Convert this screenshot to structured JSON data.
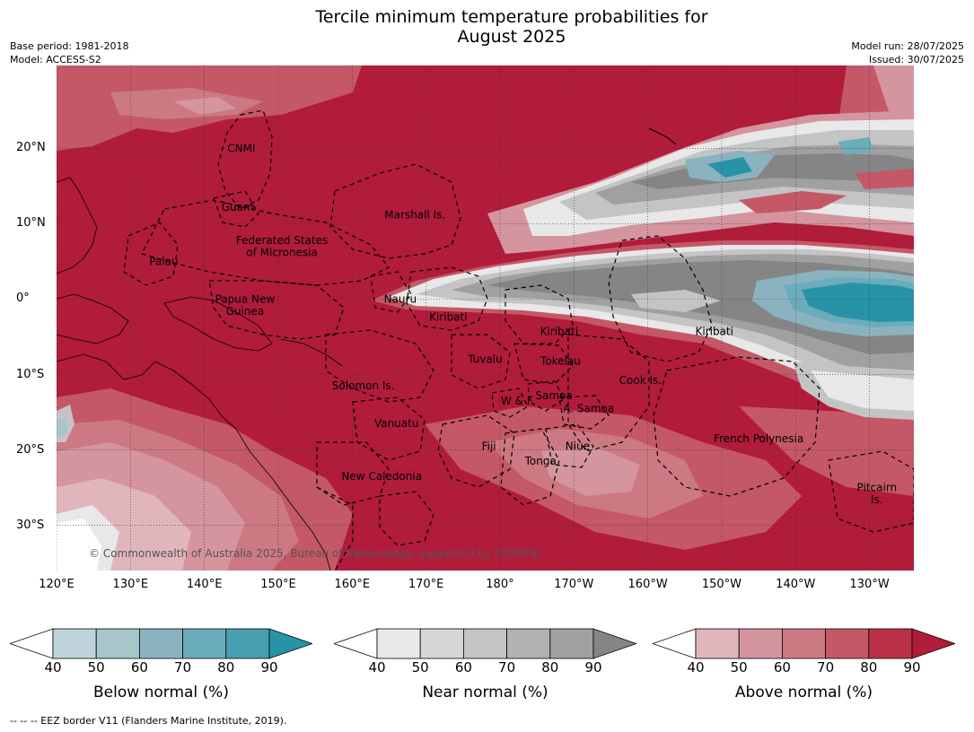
{
  "title": {
    "line1": "Tercile minimum temperature probabilities for",
    "line2": "August 2025"
  },
  "meta": {
    "base_period": "Base period: 1981-2018",
    "model": "Model: ACCESS-S2",
    "model_run": "Model run: 28/07/2025",
    "issued": "Issued: 30/07/2025"
  },
  "map": {
    "lon_range": [
      120,
      236
    ],
    "lat_range": [
      -36,
      31
    ],
    "lat_ticks": [
      {
        "value": 20,
        "label": "20°N"
      },
      {
        "value": 10,
        "label": "10°N"
      },
      {
        "value": 0,
        "label": "0°"
      },
      {
        "value": -10,
        "label": "10°S"
      },
      {
        "value": -20,
        "label": "20°S"
      },
      {
        "value": -30,
        "label": "30°S"
      }
    ],
    "lon_ticks": [
      {
        "value": 120,
        "label": "120°E"
      },
      {
        "value": 130,
        "label": "130°E"
      },
      {
        "value": 140,
        "label": "140°E"
      },
      {
        "value": 150,
        "label": "150°E"
      },
      {
        "value": 160,
        "label": "160°E"
      },
      {
        "value": 170,
        "label": "170°E"
      },
      {
        "value": 180,
        "label": "180°"
      },
      {
        "value": 190,
        "label": "170°W"
      },
      {
        "value": 200,
        "label": "160°W"
      },
      {
        "value": 210,
        "label": "150°W"
      },
      {
        "value": 220,
        "label": "140°W"
      },
      {
        "value": 230,
        "label": "130°W"
      }
    ],
    "countries": [
      {
        "name": "CNMI",
        "lon": 145.0,
        "lat": 20.0
      },
      {
        "name": "Guam",
        "lon": 144.5,
        "lat": 12.2
      },
      {
        "name": "Marshall Is.",
        "lon": 168.5,
        "lat": 11.2
      },
      {
        "name": "Federated States",
        "lon": 150.5,
        "lat": 7.8
      },
      {
        "name": "of Micronesia",
        "lon": 150.5,
        "lat": 6.2
      },
      {
        "name": "Palau",
        "lon": 134.5,
        "lat": 5.0
      },
      {
        "name": "Papua New",
        "lon": 145.5,
        "lat": 0.0
      },
      {
        "name": "Guinea",
        "lon": 145.5,
        "lat": -1.6
      },
      {
        "name": "Nauru",
        "lon": 166.5,
        "lat": 0.0
      },
      {
        "name": "Kiribati",
        "lon": 173.0,
        "lat": -2.4
      },
      {
        "name": "Kiribati",
        "lon": 188.0,
        "lat": -4.3
      },
      {
        "name": "Kiribati",
        "lon": 209.0,
        "lat": -4.3
      },
      {
        "name": "Tuvalu",
        "lon": 178.0,
        "lat": -8.0
      },
      {
        "name": "Tokelau",
        "lon": 188.2,
        "lat": -8.2
      },
      {
        "name": "Cook Is.",
        "lon": 199.0,
        "lat": -10.8
      },
      {
        "name": "Solomon Is.",
        "lon": 161.5,
        "lat": -11.5
      },
      {
        "name": "W & F",
        "lon": 182.3,
        "lat": -13.5
      },
      {
        "name": "Samoa",
        "lon": 187.3,
        "lat": -12.8
      },
      {
        "name": "A. Samoa",
        "lon": 192.0,
        "lat": -14.5
      },
      {
        "name": "Vanuatu",
        "lon": 166.0,
        "lat": -16.5
      },
      {
        "name": "Fiji",
        "lon": 178.5,
        "lat": -19.5
      },
      {
        "name": "Niue",
        "lon": 190.5,
        "lat": -19.5
      },
      {
        "name": "French Polynesia",
        "lon": 215.0,
        "lat": -18.5
      },
      {
        "name": "Tonga",
        "lon": 185.5,
        "lat": -21.5
      },
      {
        "name": "New Caledonia",
        "lon": 164.0,
        "lat": -23.5
      },
      {
        "name": "Pitcairn",
        "lon": 231.0,
        "lat": -25.0
      },
      {
        "name": "Is.",
        "lon": 231.0,
        "lat": -26.6
      }
    ],
    "copyright": "© Commonwealth of Australia 2025, Bureau of Meteorology, supported by COSPPac"
  },
  "colorbars": [
    {
      "title": "Below normal (%)",
      "ticks": [
        "40",
        "50",
        "60",
        "70",
        "80",
        "90"
      ],
      "colors": [
        "#bfd4da",
        "#a6c6ca",
        "#8ab3bf",
        "#6badba",
        "#479faf",
        "#2893a6"
      ]
    },
    {
      "title": "Near normal (%)",
      "ticks": [
        "40",
        "50",
        "60",
        "70",
        "80",
        "90"
      ],
      "colors": [
        "#e8e8e8",
        "#d6d6d6",
        "#c4c4c4",
        "#b2b2b2",
        "#a0a0a0",
        "#858585"
      ]
    },
    {
      "title": "Above normal (%)",
      "ticks": [
        "40",
        "50",
        "60",
        "70",
        "80",
        "90"
      ],
      "colors": [
        "#e0b6bc",
        "#d4959e",
        "#cc7983",
        "#c45867",
        "#bb3248",
        "#b11c3b"
      ]
    }
  ],
  "footnote": "--  --  -- EEZ border V11 (Flanders Marine Institute, 2019).",
  "colors": {
    "above_dominant": "#b11c3b",
    "near_dominant": "#858585",
    "below_dominant": "#2893a6"
  }
}
